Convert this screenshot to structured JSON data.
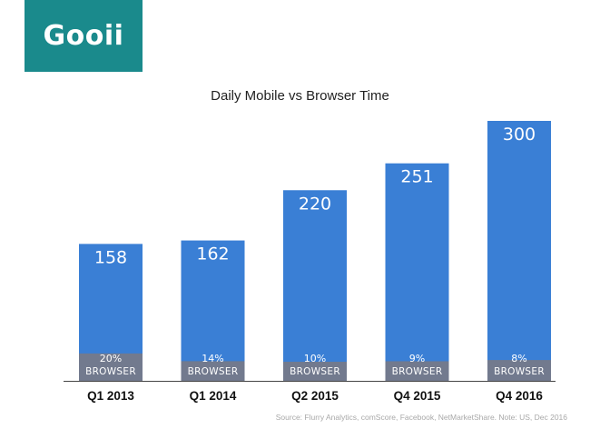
{
  "logo": {
    "text": "Gooii",
    "bg_color": "#1a8a8c",
    "text_color": "#ffffff"
  },
  "source_note": "Source: Flurry Analytics, comScore, Facebook, NetMarketShare. Note: US, Dec 2016",
  "chart_data": {
    "type": "bar",
    "title": "Daily Mobile vs Browser Time",
    "categories": [
      "Q1 2013",
      "Q1 2014",
      "Q2 2015",
      "Q4 2015",
      "Q4 2016"
    ],
    "values": [
      158,
      162,
      220,
      251,
      300
    ],
    "browser_share_labels": [
      "20%",
      "14%",
      "10%",
      "9%",
      "8%"
    ],
    "browser_share": [
      20,
      14,
      10,
      9,
      8
    ],
    "segment_label": "BROWSER",
    "ylim": [
      0,
      300
    ],
    "grid": false,
    "colors": {
      "bar": "#3a7fd5",
      "browser_segment": "#727a8e",
      "axis": "#444444"
    }
  }
}
